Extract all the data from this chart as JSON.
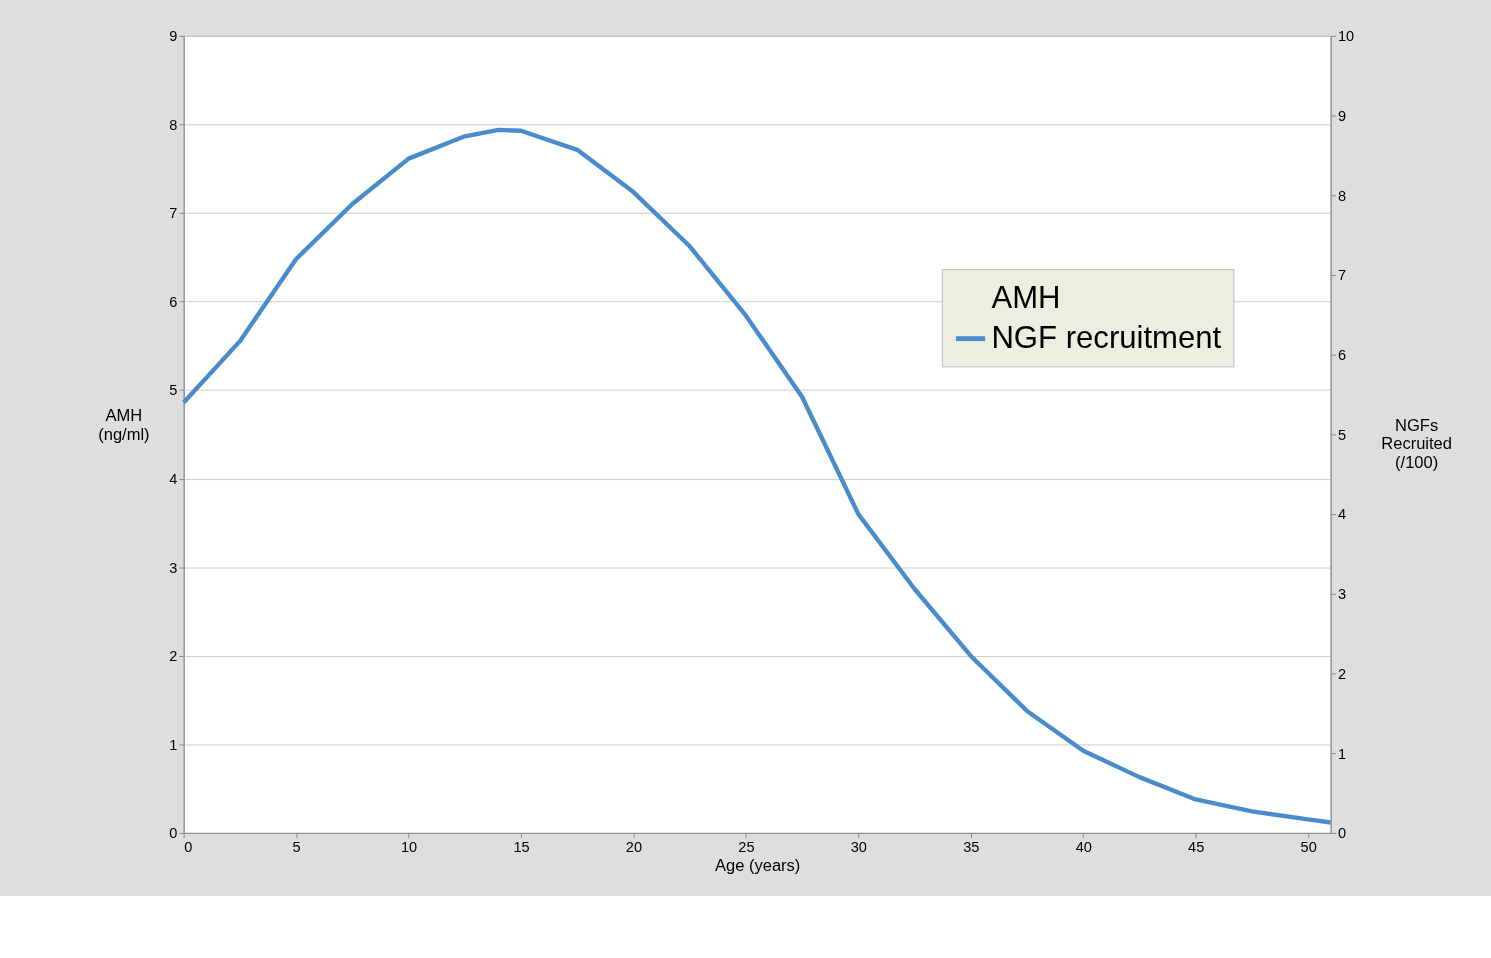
{
  "chart_data": {
    "type": "line",
    "xlabel": "Age (years)",
    "ylabel": "AMH (ng/ml)",
    "y2label": "NGFs Recruited (/100)",
    "xlim": [
      0,
      51
    ],
    "xticks": [
      0,
      5,
      10,
      15,
      20,
      25,
      30,
      35,
      40,
      45,
      50
    ],
    "ylim": [
      0,
      9
    ],
    "yticks": [
      0,
      1,
      2,
      3,
      4,
      5,
      6,
      7,
      8,
      9
    ],
    "y2lim": [
      0,
      10
    ],
    "y2ticks": [
      0,
      1,
      2,
      3,
      4,
      5,
      6,
      7,
      8,
      9,
      10
    ],
    "x": [
      0,
      2.5,
      5,
      7.5,
      10,
      12.5,
      14,
      15,
      17.5,
      20,
      22.5,
      25,
      27.5,
      30,
      32.5,
      35,
      37.5,
      40,
      42.5,
      45,
      47.5,
      50,
      51
    ],
    "series": [
      {
        "name": "AMH",
        "values": [
          null,
          null,
          null,
          null,
          null,
          null,
          null,
          null,
          null,
          null,
          null,
          null,
          null,
          null,
          null,
          null,
          null,
          null,
          null,
          null,
          null,
          null,
          null
        ]
      },
      {
        "name": "NGF recruitment",
        "color": "#4a8ccb",
        "axis": "y2",
        "values": [
          5.4,
          6.17,
          7.2,
          7.89,
          8.46,
          8.74,
          8.82,
          8.81,
          8.57,
          8.04,
          7.36,
          6.49,
          5.47,
          4.0,
          3.06,
          2.22,
          1.53,
          1.03,
          0.7,
          0.42,
          0.27,
          0.17,
          0.13
        ]
      }
    ],
    "grid": "y",
    "legend": "top right",
    "marker": "none",
    "line_style": "solid"
  }
}
